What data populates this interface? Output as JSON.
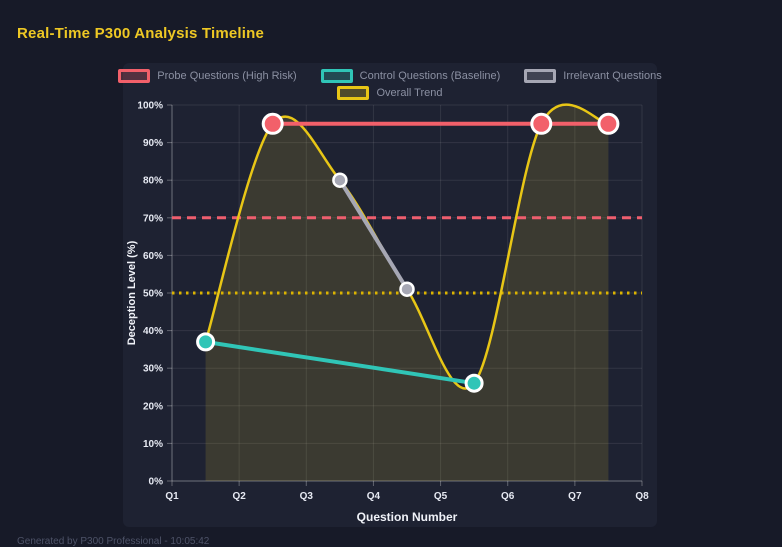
{
  "page": {
    "title": "Real-Time P300 Analysis Timeline",
    "footer": "Generated by P300 Professional - 10:05:42",
    "background": "#171a28",
    "panel_background": "#1e2232",
    "title_color": "#eec824"
  },
  "chart_data": {
    "type": "line",
    "title": "Real-Time P300 Analysis Timeline",
    "xlabel": "Question Number",
    "ylabel": "Deception Level (%)",
    "x_range": [
      1,
      8
    ],
    "x_ticks": [
      "Q1",
      "Q2",
      "Q3",
      "Q4",
      "Q5",
      "Q6",
      "Q7",
      "Q8"
    ],
    "ylim": [
      0,
      100
    ],
    "y_ticks": [
      "0%",
      "10%",
      "20%",
      "30%",
      "40%",
      "50%",
      "60%",
      "70%",
      "80%",
      "90%",
      "100%"
    ],
    "grid": true,
    "legend_position": "top",
    "legend_rows": [
      [
        0,
        1,
        2
      ],
      [
        3
      ]
    ],
    "series": [
      {
        "name": "Probe Questions (High Risk)",
        "color": "#f2606a",
        "x": [
          2.5,
          6.5,
          7.5
        ],
        "y": [
          95,
          95,
          95
        ],
        "line_width": 4,
        "point_radius": 9.5,
        "point_stroke": 3,
        "smooth": false,
        "fill": false
      },
      {
        "name": "Control Questions (Baseline)",
        "color": "#30c5b7",
        "x": [
          1.5,
          5.5
        ],
        "y": [
          37,
          26
        ],
        "line_width": 4,
        "point_radius": 8,
        "point_stroke": 3,
        "smooth": false,
        "fill": false
      },
      {
        "name": "Irrelevant Questions",
        "color": "#a6a7b4",
        "x": [
          3.5,
          4.5
        ],
        "y": [
          80,
          51
        ],
        "line_width": 4,
        "point_radius": 6.5,
        "point_stroke": 2.5,
        "smooth": false,
        "fill": false
      },
      {
        "name": "Overall Trend",
        "color": "#e8c616",
        "x": [
          1.5,
          2.5,
          3.5,
          4.5,
          5.5,
          6.5,
          7.5
        ],
        "y": [
          37,
          95,
          80,
          51,
          26,
          95,
          95
        ],
        "line_width": 2.5,
        "point_radius": 0,
        "point_stroke": 0,
        "smooth": true,
        "fill": true,
        "fill_color": "rgba(230,198,45,0.15)"
      }
    ],
    "thresholds": [
      {
        "value": 70,
        "color": "#ee5e6e",
        "style": "dashed"
      },
      {
        "value": 50,
        "color": "#dcb400",
        "style": "dotted"
      }
    ],
    "axis": {
      "tick_color": "#e7eaf3",
      "grid_color": "rgba(255,255,255,0.09)",
      "axis_color": "rgba(255,255,255,0.30)",
      "label_color": "#f0f2f8"
    }
  }
}
